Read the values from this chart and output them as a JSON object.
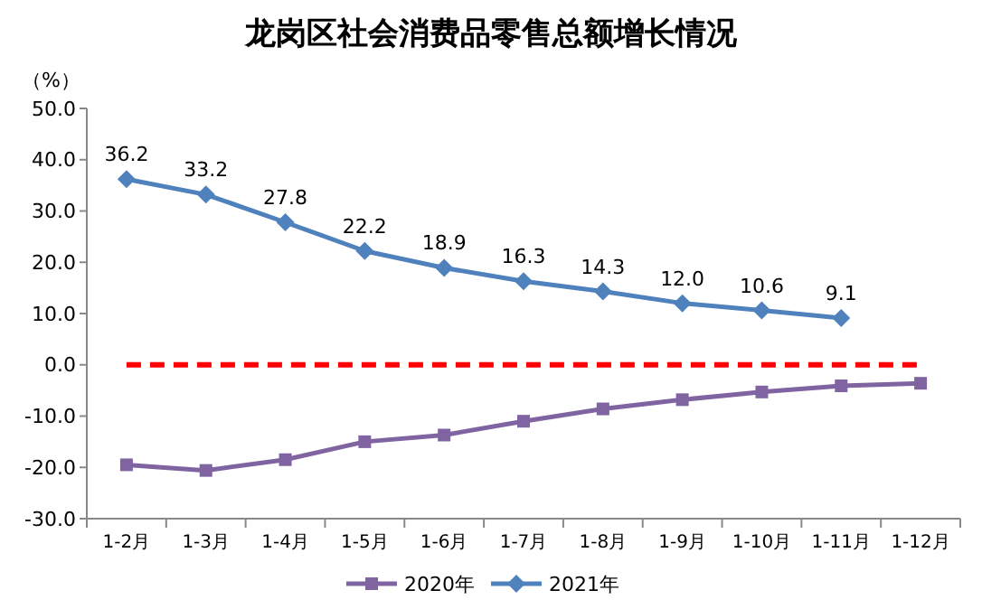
{
  "chart_data": {
    "type": "line",
    "title": "龙岗区社会消费品零售总额增长情况",
    "ylabel": "（%）",
    "categories": [
      "1-2月",
      "1-3月",
      "1-4月",
      "1-5月",
      "1-6月",
      "1-7月",
      "1-8月",
      "1-9月",
      "1-10月",
      "1-11月",
      "1-12月"
    ],
    "series": [
      {
        "name": "2020年",
        "color": "#8064a2",
        "marker": "square",
        "values": [
          -19.5,
          -20.6,
          -18.5,
          -15.0,
          -13.7,
          -11.0,
          -8.6,
          -6.8,
          -5.3,
          -4.1,
          -3.6
        ]
      },
      {
        "name": "2021年",
        "color": "#4f81bd",
        "marker": "diamond",
        "value_labels": [
          "36.2",
          "33.2",
          "27.8",
          "22.2",
          "18.9",
          "16.3",
          "14.3",
          "12.0",
          "10.6",
          "9.1",
          null
        ],
        "values": [
          36.2,
          33.2,
          27.8,
          22.2,
          18.9,
          16.3,
          14.3,
          12.0,
          10.6,
          9.1,
          null
        ]
      }
    ],
    "ylim": [
      -30,
      50
    ],
    "yticks": [
      {
        "value": -30,
        "label": "-30.0"
      },
      {
        "value": -20,
        "label": "-20.0"
      },
      {
        "value": -10,
        "label": "-10.0"
      },
      {
        "value": 0,
        "label": "0.0"
      },
      {
        "value": 10,
        "label": "10.0"
      },
      {
        "value": 20,
        "label": "20.0"
      },
      {
        "value": 30,
        "label": "30.0"
      },
      {
        "value": 40,
        "label": "40.0"
      },
      {
        "value": 50,
        "label": "50.0"
      }
    ],
    "ref_lines": [
      {
        "axis": "y",
        "value": 0,
        "color": "#ff0000",
        "line_style": "dashed"
      }
    ],
    "grid": false,
    "legend": "bottom"
  }
}
